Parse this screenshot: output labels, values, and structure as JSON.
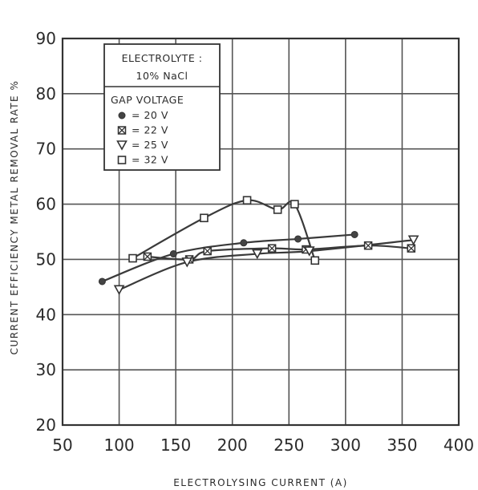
{
  "chart_data": {
    "type": "scatter",
    "title": "",
    "xlabel": "ELECTROLYSING  CURRENT  (A)",
    "ylabel": "CURRENT  EFFICIENCY  METAL  REMOVAL  RATE %",
    "xlim": [
      50,
      400
    ],
    "ylim": [
      20,
      90
    ],
    "xticks": [
      "50",
      "100",
      "150",
      "200",
      "250",
      "300",
      "350",
      "400"
    ],
    "yticks": [
      "20",
      "30",
      "40",
      "50",
      "60",
      "70",
      "80",
      "90"
    ],
    "grid": true,
    "legend": {
      "title_line1": "ELECTROLYTE :",
      "title_line2": "10% NaCl",
      "subtitle": "GAP  VOLTAGE",
      "placement": "top-left",
      "entries": [
        {
          "symbol": "circle",
          "label": "= 20  V"
        },
        {
          "symbol": "cross-square",
          "label": "= 22  V"
        },
        {
          "symbol": "triangle-down",
          "label": "= 25  V"
        },
        {
          "symbol": "square",
          "label": "= 32  V"
        }
      ]
    },
    "series": [
      {
        "name": "20 V",
        "marker": "circle",
        "x": [
          85,
          148,
          210,
          258,
          308
        ],
        "y": [
          46,
          51,
          53,
          53.7,
          54.5
        ]
      },
      {
        "name": "22 V",
        "marker": "cross-square",
        "x": [
          125,
          162,
          178,
          235,
          265,
          320,
          358
        ],
        "y": [
          50.5,
          50,
          51.5,
          52,
          51.8,
          52.5,
          52
        ]
      },
      {
        "name": "25 V",
        "marker": "triangle-down",
        "x": [
          100,
          160,
          222,
          268,
          360
        ],
        "y": [
          44.5,
          49.5,
          51,
          51.5,
          53.5
        ]
      },
      {
        "name": "32 V",
        "marker": "square",
        "x": [
          112,
          175,
          213,
          240,
          255,
          273
        ],
        "y": [
          50.2,
          57.5,
          60.7,
          59,
          60,
          49.8
        ]
      }
    ]
  }
}
